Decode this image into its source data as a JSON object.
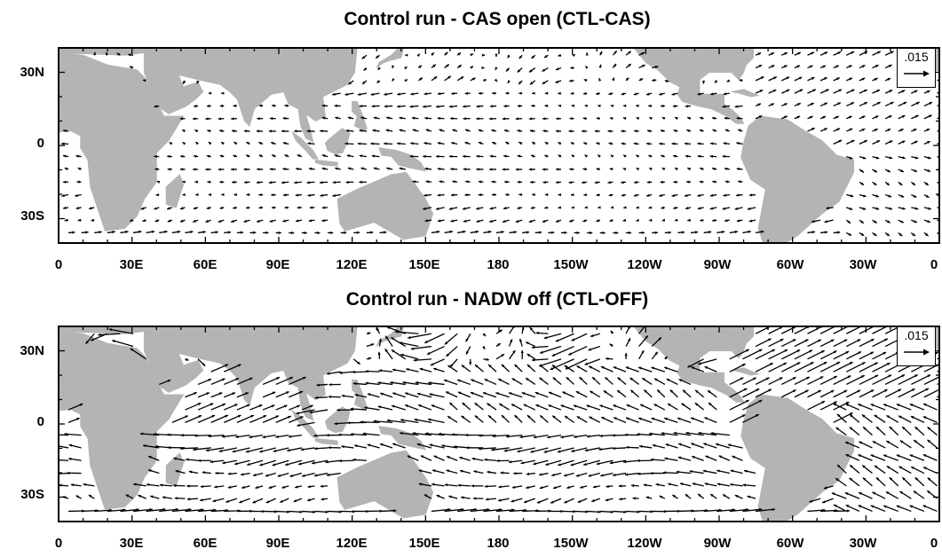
{
  "panels": [
    {
      "title": "Control run - CAS open (CTL-CAS)",
      "reference_vector": ".015",
      "strength": 1.0
    },
    {
      "title": "Control run - NADW off (CTL-OFF)",
      "reference_vector": ".015",
      "strength": 1.9
    }
  ],
  "y_axis_labels": [
    "30N",
    "0",
    "30S"
  ],
  "x_axis_labels": [
    "0",
    "30E",
    "60E",
    "90E",
    "120E",
    "150E",
    "180",
    "150W",
    "120W",
    "90W",
    "60W",
    "30W",
    "0"
  ],
  "colors": {
    "land": "#b4b4b4",
    "ocean": "#ffffff",
    "vector": "#000000",
    "frame": "#000000"
  },
  "map": {
    "lon_range": [
      0,
      360
    ],
    "lat_range": [
      -40,
      40
    ],
    "vector_type": "anomaly current vectors"
  }
}
